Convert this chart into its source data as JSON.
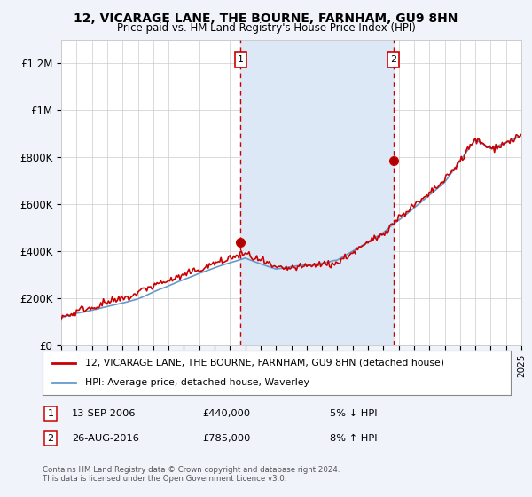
{
  "title1": "12, VICARAGE LANE, THE BOURNE, FARNHAM, GU9 8HN",
  "title2": "Price paid vs. HM Land Registry's House Price Index (HPI)",
  "legend_line1": "12, VICARAGE LANE, THE BOURNE, FARNHAM, GU9 8HN (detached house)",
  "legend_line2": "HPI: Average price, detached house, Waverley",
  "annotation1_date": "13-SEP-2006",
  "annotation1_price": "£440,000",
  "annotation1_hpi": "5% ↓ HPI",
  "annotation2_date": "26-AUG-2016",
  "annotation2_price": "£785,000",
  "annotation2_hpi": "8% ↑ HPI",
  "footnote1": "Contains HM Land Registry data © Crown copyright and database right 2024.",
  "footnote2": "This data is licensed under the Open Government Licence v3.0.",
  "background_color": "#f0f4fa",
  "plot_bg_color": "#ffffff",
  "red_line_color": "#cc0000",
  "blue_line_color": "#6699cc",
  "shade_color": "#dce8f5",
  "dashed_color": "#cc0000",
  "ylim": [
    0,
    1300000
  ],
  "yticks": [
    0,
    200000,
    400000,
    600000,
    800000,
    1000000,
    1200000
  ],
  "ytick_labels": [
    "£0",
    "£200K",
    "£400K",
    "£600K",
    "£800K",
    "£1M",
    "£1.2M"
  ],
  "purchase1_year": 2006.7,
  "purchase1_value": 440000,
  "purchase2_year": 2016.65,
  "purchase2_value": 785000,
  "xmin": 1995,
  "xmax": 2025
}
